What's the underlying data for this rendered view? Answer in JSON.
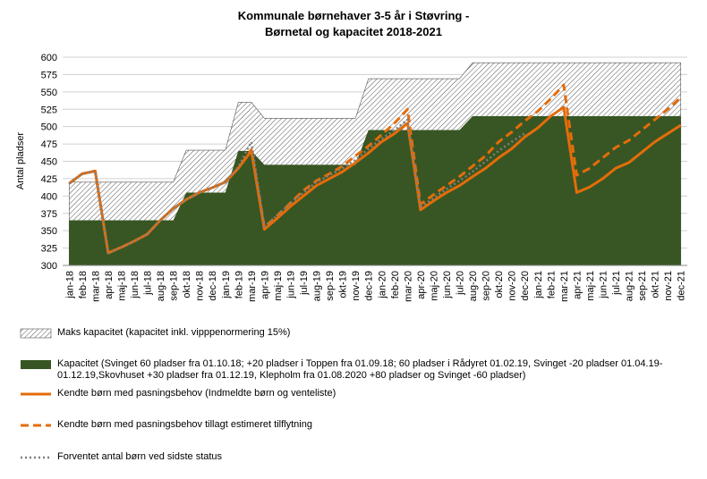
{
  "chart_data": {
    "type": "area-line",
    "title": "Kommunale børnehaver 3-5 år i Støvring -",
    "subtitle": "Børnetal og kapacitet 2018-2021",
    "y_label": "Antal pladser",
    "categories": [
      "jan-18",
      "feb-18",
      "mar-18",
      "apr-18",
      "maj-18",
      "jun-18",
      "jul-18",
      "aug-18",
      "sep-18",
      "okt-18",
      "nov-18",
      "dec-18",
      "jan-19",
      "feb-19",
      "mar-19",
      "apr-19",
      "maj-19",
      "jun-19",
      "jul-19",
      "aug-19",
      "sep-19",
      "okt-19",
      "nov-19",
      "dec-19",
      "jan-20",
      "feb-20",
      "mar-20",
      "apr-20",
      "maj-20",
      "jun-20",
      "jul-20",
      "aug-20",
      "sep-20",
      "okt-20",
      "nov-20",
      "dec-20",
      "jan-21",
      "feb-21",
      "mar-21",
      "apr-21",
      "maj-21",
      "jun-21",
      "jul-21",
      "aug-21",
      "sep-21",
      "okt-21",
      "nov-21",
      "dec-21"
    ],
    "ylim": [
      300,
      600
    ],
    "yticks": [
      300,
      325,
      350,
      375,
      400,
      425,
      450,
      475,
      500,
      525,
      550,
      575,
      600
    ],
    "grid": true,
    "series": [
      {
        "name": "Maks kapacitet (kapacitet inkl. vipppenormering 15%)",
        "kind": "area",
        "style": "hatched",
        "color": "#555555",
        "values": [
          420,
          420,
          420,
          420,
          420,
          420,
          420,
          420,
          420,
          466,
          466,
          466,
          466,
          535,
          535,
          512,
          512,
          512,
          512,
          512,
          512,
          512,
          512,
          569,
          569,
          569,
          569,
          569,
          569,
          569,
          569,
          592,
          592,
          592,
          592,
          592,
          592,
          592,
          592,
          592,
          592,
          592,
          592,
          592,
          592,
          592,
          592,
          592
        ]
      },
      {
        "name": "Kapacitet (Svinget 60 pladser fra 01.10.18; +20 pladser i Toppen fra 01.09.18; 60 pladser i Rådyret 01.02.19, Svinget -20 pladser 01.04.19-01.12.19,Skovhuset +30 pladser fra 01.12.19, Klepholm fra 01.08.2020 +80 pladser og Svinget -60 pladser)",
        "kind": "area",
        "style": "solid",
        "color": "#375623",
        "values": [
          365,
          365,
          365,
          365,
          365,
          365,
          365,
          365,
          365,
          405,
          405,
          405,
          405,
          465,
          465,
          445,
          445,
          445,
          445,
          445,
          445,
          445,
          445,
          495,
          495,
          495,
          495,
          495,
          495,
          495,
          495,
          515,
          515,
          515,
          515,
          515,
          515,
          515,
          515,
          515,
          515,
          515,
          515,
          515,
          515,
          515,
          515,
          515
        ]
      },
      {
        "name": "Kendte børn med pasningsbehov (Indmeldte børn og venteliste)",
        "kind": "line",
        "style": "solid",
        "color": "#e46c0a",
        "values": [
          418,
          432,
          436,
          318,
          326,
          335,
          345,
          365,
          382,
          395,
          405,
          412,
          420,
          440,
          465,
          352,
          368,
          385,
          400,
          415,
          425,
          435,
          448,
          462,
          478,
          490,
          505,
          380,
          393,
          405,
          415,
          428,
          440,
          455,
          468,
          485,
          498,
          515,
          528,
          405,
          413,
          425,
          440,
          448,
          463,
          478,
          490,
          502
        ]
      },
      {
        "name": "Kendte børn med pasningsbehov tillagt estimeret tilflytning",
        "kind": "line",
        "style": "dashed",
        "color": "#e46c0a",
        "values": [
          418,
          432,
          436,
          318,
          326,
          335,
          345,
          365,
          382,
          395,
          405,
          412,
          420,
          440,
          467,
          355,
          372,
          390,
          408,
          422,
          432,
          443,
          458,
          472,
          488,
          505,
          525,
          388,
          402,
          415,
          428,
          443,
          458,
          478,
          492,
          508,
          522,
          540,
          560,
          430,
          440,
          455,
          470,
          480,
          495,
          510,
          525,
          542
        ]
      },
      {
        "name": "Forventet antal børn ved sidste status",
        "kind": "line",
        "style": "dotted",
        "color": "#7f7f7f",
        "values": [
          418,
          432,
          436,
          318,
          326,
          335,
          345,
          365,
          382,
          395,
          405,
          412,
          420,
          442,
          478,
          356,
          372,
          390,
          405,
          420,
          430,
          440,
          452,
          468,
          482,
          495,
          510,
          384,
          397,
          410,
          422,
          435,
          450,
          465,
          478,
          490,
          null,
          null,
          null,
          null,
          null,
          null,
          null,
          null,
          null,
          null,
          null,
          null
        ]
      }
    ]
  }
}
